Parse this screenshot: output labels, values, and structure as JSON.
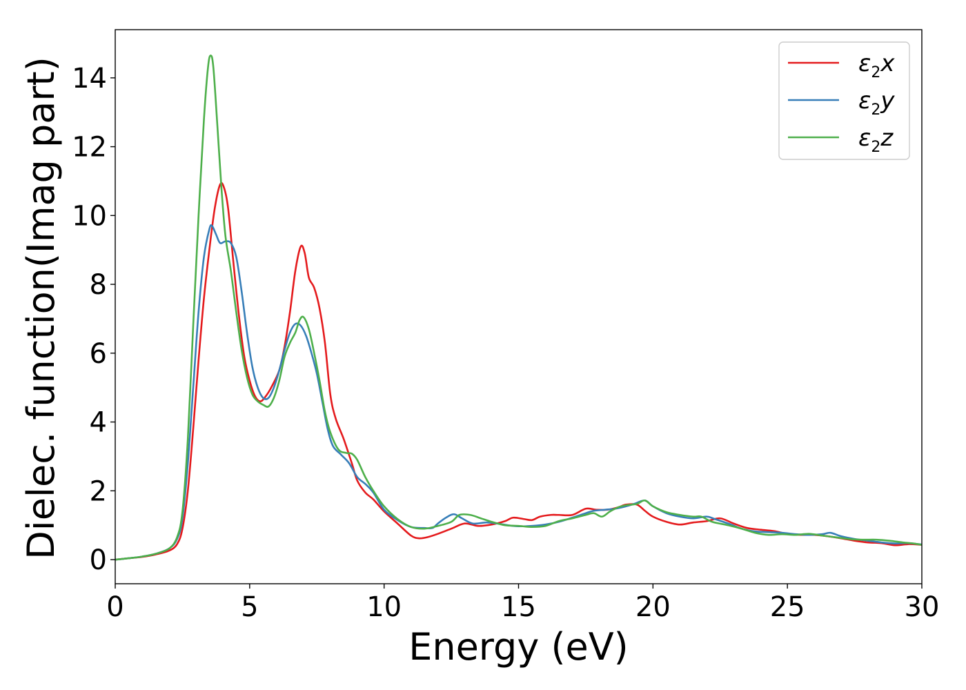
{
  "chart_data": {
    "type": "line",
    "title": "",
    "xlabel": "Energy (eV)",
    "ylabel": "Dielec. function(Imag part)",
    "xlim": [
      0,
      30
    ],
    "ylim": [
      -0.7,
      15.4
    ],
    "xticks": [
      0,
      5,
      10,
      15,
      20,
      25,
      30
    ],
    "yticks": [
      0,
      2,
      4,
      6,
      8,
      10,
      12,
      14
    ],
    "xtick_labels": [
      "0",
      "5",
      "10",
      "15",
      "20",
      "25",
      "30"
    ],
    "ytick_labels": [
      "0",
      "2",
      "4",
      "6",
      "8",
      "10",
      "12",
      "14"
    ],
    "grid": false,
    "legend_position": "top-right",
    "series": [
      {
        "name_base": "ε",
        "name_sub": "2",
        "name_tail": "x",
        "color": "#e41a1c",
        "points": [
          [
            0,
            0
          ],
          [
            0.5,
            0.04
          ],
          [
            1.0,
            0.08
          ],
          [
            1.5,
            0.15
          ],
          [
            2.0,
            0.26
          ],
          [
            2.3,
            0.45
          ],
          [
            2.5,
            0.9
          ],
          [
            2.7,
            2.0
          ],
          [
            2.9,
            3.8
          ],
          [
            3.1,
            5.8
          ],
          [
            3.3,
            7.6
          ],
          [
            3.5,
            9.0
          ],
          [
            3.7,
            10.2
          ],
          [
            3.9,
            10.9
          ],
          [
            4.05,
            10.8
          ],
          [
            4.2,
            10.2
          ],
          [
            4.4,
            8.6
          ],
          [
            4.6,
            7.1
          ],
          [
            4.8,
            5.9
          ],
          [
            5.0,
            5.2
          ],
          [
            5.2,
            4.75
          ],
          [
            5.4,
            4.6
          ],
          [
            5.6,
            4.75
          ],
          [
            5.8,
            5.0
          ],
          [
            6.1,
            5.5
          ],
          [
            6.3,
            6.2
          ],
          [
            6.5,
            7.2
          ],
          [
            6.7,
            8.4
          ],
          [
            6.9,
            9.1
          ],
          [
            7.05,
            8.9
          ],
          [
            7.2,
            8.2
          ],
          [
            7.4,
            7.9
          ],
          [
            7.6,
            7.3
          ],
          [
            7.8,
            6.3
          ],
          [
            8.0,
            4.8
          ],
          [
            8.2,
            4.1
          ],
          [
            8.5,
            3.5
          ],
          [
            8.8,
            2.8
          ],
          [
            9.0,
            2.3
          ],
          [
            9.3,
            1.95
          ],
          [
            9.6,
            1.75
          ],
          [
            10.0,
            1.4
          ],
          [
            10.5,
            1.05
          ],
          [
            11.0,
            0.7
          ],
          [
            11.3,
            0.62
          ],
          [
            11.6,
            0.65
          ],
          [
            12.0,
            0.75
          ],
          [
            12.5,
            0.9
          ],
          [
            13.0,
            1.05
          ],
          [
            13.5,
            0.98
          ],
          [
            14.0,
            1.02
          ],
          [
            14.5,
            1.12
          ],
          [
            14.8,
            1.22
          ],
          [
            15.2,
            1.18
          ],
          [
            15.5,
            1.15
          ],
          [
            15.8,
            1.25
          ],
          [
            16.2,
            1.3
          ],
          [
            16.5,
            1.3
          ],
          [
            17.0,
            1.3
          ],
          [
            17.5,
            1.48
          ],
          [
            17.9,
            1.45
          ],
          [
            18.3,
            1.45
          ],
          [
            18.7,
            1.52
          ],
          [
            19.0,
            1.6
          ],
          [
            19.4,
            1.6
          ],
          [
            19.7,
            1.42
          ],
          [
            20.0,
            1.25
          ],
          [
            20.5,
            1.1
          ],
          [
            21.0,
            1.02
          ],
          [
            21.5,
            1.08
          ],
          [
            22.0,
            1.12
          ],
          [
            22.5,
            1.2
          ],
          [
            23.0,
            1.05
          ],
          [
            23.5,
            0.92
          ],
          [
            24.0,
            0.87
          ],
          [
            24.5,
            0.83
          ],
          [
            25.0,
            0.75
          ],
          [
            25.5,
            0.72
          ],
          [
            26.0,
            0.72
          ],
          [
            26.5,
            0.68
          ],
          [
            27.0,
            0.62
          ],
          [
            27.5,
            0.55
          ],
          [
            28.0,
            0.5
          ],
          [
            28.5,
            0.48
          ],
          [
            29.0,
            0.42
          ],
          [
            29.5,
            0.45
          ],
          [
            30.0,
            0.43
          ]
        ]
      },
      {
        "name_base": "ε",
        "name_sub": "2",
        "name_tail": "y",
        "color": "#377eb8",
        "points": [
          [
            0,
            0
          ],
          [
            0.5,
            0.04
          ],
          [
            1.0,
            0.09
          ],
          [
            1.5,
            0.17
          ],
          [
            2.0,
            0.32
          ],
          [
            2.3,
            0.6
          ],
          [
            2.5,
            1.2
          ],
          [
            2.7,
            2.8
          ],
          [
            2.9,
            5.0
          ],
          [
            3.1,
            7.2
          ],
          [
            3.3,
            8.8
          ],
          [
            3.5,
            9.6
          ],
          [
            3.6,
            9.7
          ],
          [
            3.75,
            9.45
          ],
          [
            3.9,
            9.2
          ],
          [
            4.1,
            9.25
          ],
          [
            4.3,
            9.2
          ],
          [
            4.5,
            8.8
          ],
          [
            4.7,
            7.8
          ],
          [
            4.9,
            6.6
          ],
          [
            5.1,
            5.6
          ],
          [
            5.3,
            5.0
          ],
          [
            5.5,
            4.7
          ],
          [
            5.7,
            4.7
          ],
          [
            5.9,
            5.0
          ],
          [
            6.1,
            5.5
          ],
          [
            6.3,
            6.1
          ],
          [
            6.5,
            6.6
          ],
          [
            6.7,
            6.85
          ],
          [
            6.9,
            6.8
          ],
          [
            7.1,
            6.5
          ],
          [
            7.3,
            6.0
          ],
          [
            7.5,
            5.4
          ],
          [
            7.7,
            4.6
          ],
          [
            7.9,
            3.8
          ],
          [
            8.1,
            3.3
          ],
          [
            8.4,
            3.05
          ],
          [
            8.7,
            2.8
          ],
          [
            9.0,
            2.4
          ],
          [
            9.3,
            2.2
          ],
          [
            9.6,
            1.95
          ],
          [
            10.0,
            1.45
          ],
          [
            10.5,
            1.15
          ],
          [
            11.0,
            0.95
          ],
          [
            11.5,
            0.92
          ],
          [
            11.8,
            0.92
          ],
          [
            12.0,
            1.05
          ],
          [
            12.3,
            1.22
          ],
          [
            12.6,
            1.32
          ],
          [
            12.9,
            1.2
          ],
          [
            13.3,
            1.05
          ],
          [
            13.8,
            1.08
          ],
          [
            14.2,
            1.05
          ],
          [
            14.6,
            1.0
          ],
          [
            15.0,
            0.97
          ],
          [
            15.5,
            0.98
          ],
          [
            16.0,
            1.02
          ],
          [
            16.5,
            1.1
          ],
          [
            17.0,
            1.22
          ],
          [
            17.5,
            1.35
          ],
          [
            17.8,
            1.42
          ],
          [
            18.2,
            1.45
          ],
          [
            18.6,
            1.48
          ],
          [
            19.0,
            1.55
          ],
          [
            19.3,
            1.62
          ],
          [
            19.7,
            1.72
          ],
          [
            20.0,
            1.55
          ],
          [
            20.5,
            1.35
          ],
          [
            21.0,
            1.25
          ],
          [
            21.5,
            1.2
          ],
          [
            22.0,
            1.25
          ],
          [
            22.3,
            1.18
          ],
          [
            22.8,
            1.05
          ],
          [
            23.3,
            0.9
          ],
          [
            23.8,
            0.82
          ],
          [
            24.3,
            0.8
          ],
          [
            24.8,
            0.78
          ],
          [
            25.3,
            0.74
          ],
          [
            25.8,
            0.72
          ],
          [
            26.3,
            0.74
          ],
          [
            26.6,
            0.78
          ],
          [
            27.0,
            0.68
          ],
          [
            27.5,
            0.6
          ],
          [
            28.0,
            0.55
          ],
          [
            28.5,
            0.5
          ],
          [
            29.0,
            0.47
          ],
          [
            29.5,
            0.48
          ],
          [
            30.0,
            0.44
          ]
        ]
      },
      {
        "name_base": "ε",
        "name_sub": "2",
        "name_tail": "z",
        "color": "#4daf4a",
        "points": [
          [
            0,
            0
          ],
          [
            0.5,
            0.04
          ],
          [
            1.0,
            0.09
          ],
          [
            1.5,
            0.17
          ],
          [
            2.0,
            0.32
          ],
          [
            2.3,
            0.65
          ],
          [
            2.5,
            1.4
          ],
          [
            2.7,
            3.5
          ],
          [
            2.9,
            6.8
          ],
          [
            3.1,
            10.0
          ],
          [
            3.3,
            12.8
          ],
          [
            3.45,
            14.3
          ],
          [
            3.55,
            14.65
          ],
          [
            3.65,
            14.3
          ],
          [
            3.8,
            12.6
          ],
          [
            3.95,
            10.8
          ],
          [
            4.1,
            9.4
          ],
          [
            4.3,
            8.4
          ],
          [
            4.5,
            7.2
          ],
          [
            4.7,
            6.1
          ],
          [
            4.9,
            5.3
          ],
          [
            5.1,
            4.8
          ],
          [
            5.3,
            4.6
          ],
          [
            5.5,
            4.5
          ],
          [
            5.7,
            4.45
          ],
          [
            5.9,
            4.7
          ],
          [
            6.1,
            5.2
          ],
          [
            6.3,
            5.9
          ],
          [
            6.5,
            6.3
          ],
          [
            6.7,
            6.6
          ],
          [
            6.85,
            6.95
          ],
          [
            7.0,
            7.05
          ],
          [
            7.2,
            6.7
          ],
          [
            7.4,
            6.0
          ],
          [
            7.6,
            5.2
          ],
          [
            7.8,
            4.3
          ],
          [
            8.0,
            3.7
          ],
          [
            8.3,
            3.2
          ],
          [
            8.6,
            3.1
          ],
          [
            8.8,
            3.08
          ],
          [
            9.0,
            2.9
          ],
          [
            9.3,
            2.4
          ],
          [
            9.6,
            2.0
          ],
          [
            10.0,
            1.55
          ],
          [
            10.5,
            1.18
          ],
          [
            11.0,
            0.95
          ],
          [
            11.5,
            0.9
          ],
          [
            12.0,
            0.98
          ],
          [
            12.5,
            1.1
          ],
          [
            12.8,
            1.3
          ],
          [
            13.2,
            1.3
          ],
          [
            13.6,
            1.2
          ],
          [
            14.0,
            1.1
          ],
          [
            14.5,
            1.0
          ],
          [
            15.0,
            0.98
          ],
          [
            15.5,
            0.95
          ],
          [
            16.0,
            0.98
          ],
          [
            16.5,
            1.12
          ],
          [
            17.0,
            1.2
          ],
          [
            17.5,
            1.3
          ],
          [
            17.8,
            1.35
          ],
          [
            18.1,
            1.25
          ],
          [
            18.4,
            1.4
          ],
          [
            18.7,
            1.52
          ],
          [
            19.0,
            1.58
          ],
          [
            19.4,
            1.62
          ],
          [
            19.7,
            1.72
          ],
          [
            20.0,
            1.55
          ],
          [
            20.5,
            1.38
          ],
          [
            21.0,
            1.3
          ],
          [
            21.5,
            1.25
          ],
          [
            21.8,
            1.25
          ],
          [
            22.2,
            1.1
          ],
          [
            22.8,
            1.0
          ],
          [
            23.3,
            0.9
          ],
          [
            23.8,
            0.78
          ],
          [
            24.3,
            0.72
          ],
          [
            24.8,
            0.74
          ],
          [
            25.3,
            0.72
          ],
          [
            25.8,
            0.75
          ],
          [
            26.3,
            0.7
          ],
          [
            26.8,
            0.65
          ],
          [
            27.3,
            0.6
          ],
          [
            27.8,
            0.58
          ],
          [
            28.3,
            0.58
          ],
          [
            28.8,
            0.55
          ],
          [
            29.3,
            0.5
          ],
          [
            29.7,
            0.47
          ],
          [
            30.0,
            0.43
          ]
        ]
      }
    ]
  }
}
